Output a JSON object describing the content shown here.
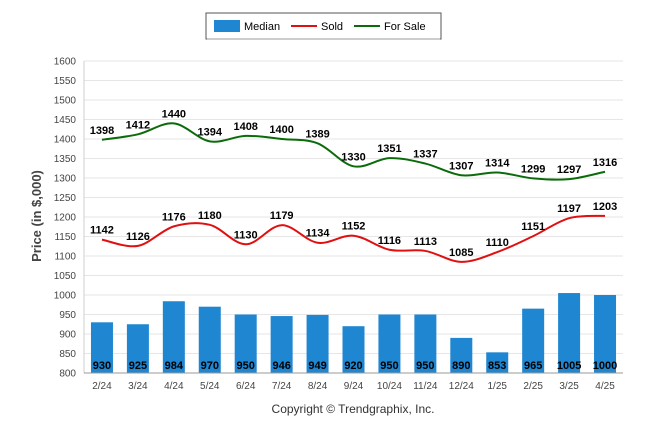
{
  "chart_data": {
    "type": "bar",
    "categories": [
      "2/24",
      "3/24",
      "4/24",
      "5/24",
      "6/24",
      "7/24",
      "8/24",
      "9/24",
      "10/24",
      "11/24",
      "12/24",
      "1/25",
      "2/25",
      "3/25",
      "4/25"
    ],
    "series": [
      {
        "name": "Median",
        "type": "bar",
        "color": "#1f86d1",
        "values": [
          930,
          925,
          984,
          970,
          950,
          946,
          949,
          920,
          950,
          950,
          890,
          853,
          965,
          1005,
          1000
        ]
      },
      {
        "name": "Sold",
        "type": "line",
        "color": "#e01010",
        "values": [
          1142,
          1126,
          1176,
          1180,
          1130,
          1179,
          1134,
          1152,
          1116,
          1113,
          1085,
          1110,
          1151,
          1197,
          1203
        ]
      },
      {
        "name": "For Sale",
        "type": "line",
        "color": "#0b6b0b",
        "values": [
          1398,
          1412,
          1440,
          1394,
          1408,
          1400,
          1389,
          1330,
          1351,
          1337,
          1307,
          1314,
          1299,
          1297,
          1316
        ]
      }
    ],
    "ylabel": "Price (in $,000)",
    "xlabel": "",
    "ylim": [
      800,
      1600
    ],
    "yticks": [
      800,
      850,
      900,
      950,
      1000,
      1050,
      1100,
      1150,
      1200,
      1250,
      1300,
      1350,
      1400,
      1450,
      1500,
      1550,
      1600
    ],
    "grid": true,
    "legend_position": "top-center"
  },
  "footer": {
    "copyright": "Copyright © Trendgraphix, Inc."
  }
}
